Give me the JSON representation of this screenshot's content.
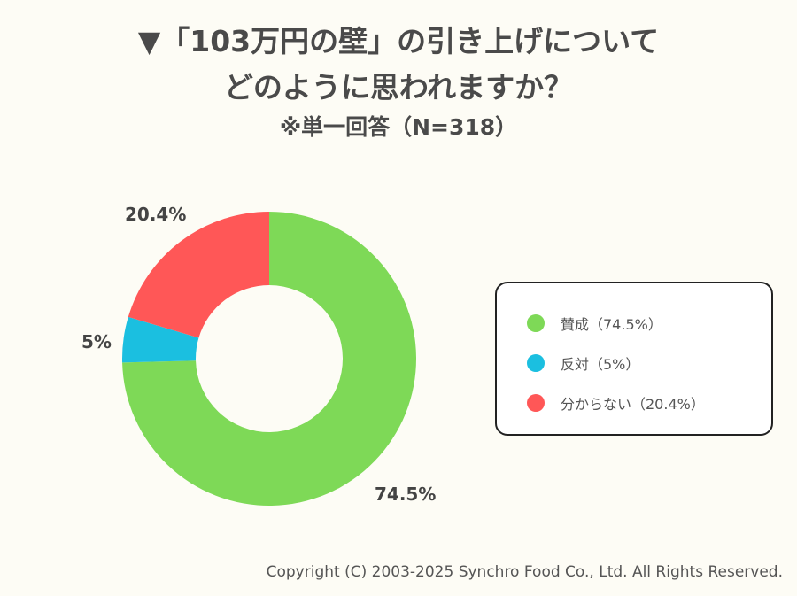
{
  "title_line1": "▼「103万円の壁」の引き上げについて",
  "title_line2": "どのように思われますか？",
  "subtitle": "※単一回答（N=318）",
  "chart_data": {
    "type": "pie",
    "variant": "donut",
    "categories": [
      "賛成",
      "反対",
      "分からない"
    ],
    "values": [
      74.5,
      5,
      20.4
    ],
    "data_labels": [
      "74.5%",
      "5%",
      "20.4%"
    ],
    "colors": [
      "#7ed957",
      "#1bbfe0",
      "#ff5757"
    ],
    "legend_placement": "right",
    "legend": [
      "賛成（74.5%）",
      "反対（5%）",
      "分からない（20.4%）"
    ]
  },
  "copyright": "Copyright (C) 2003-2025  Synchro Food Co., Ltd. All Rights Reserved."
}
